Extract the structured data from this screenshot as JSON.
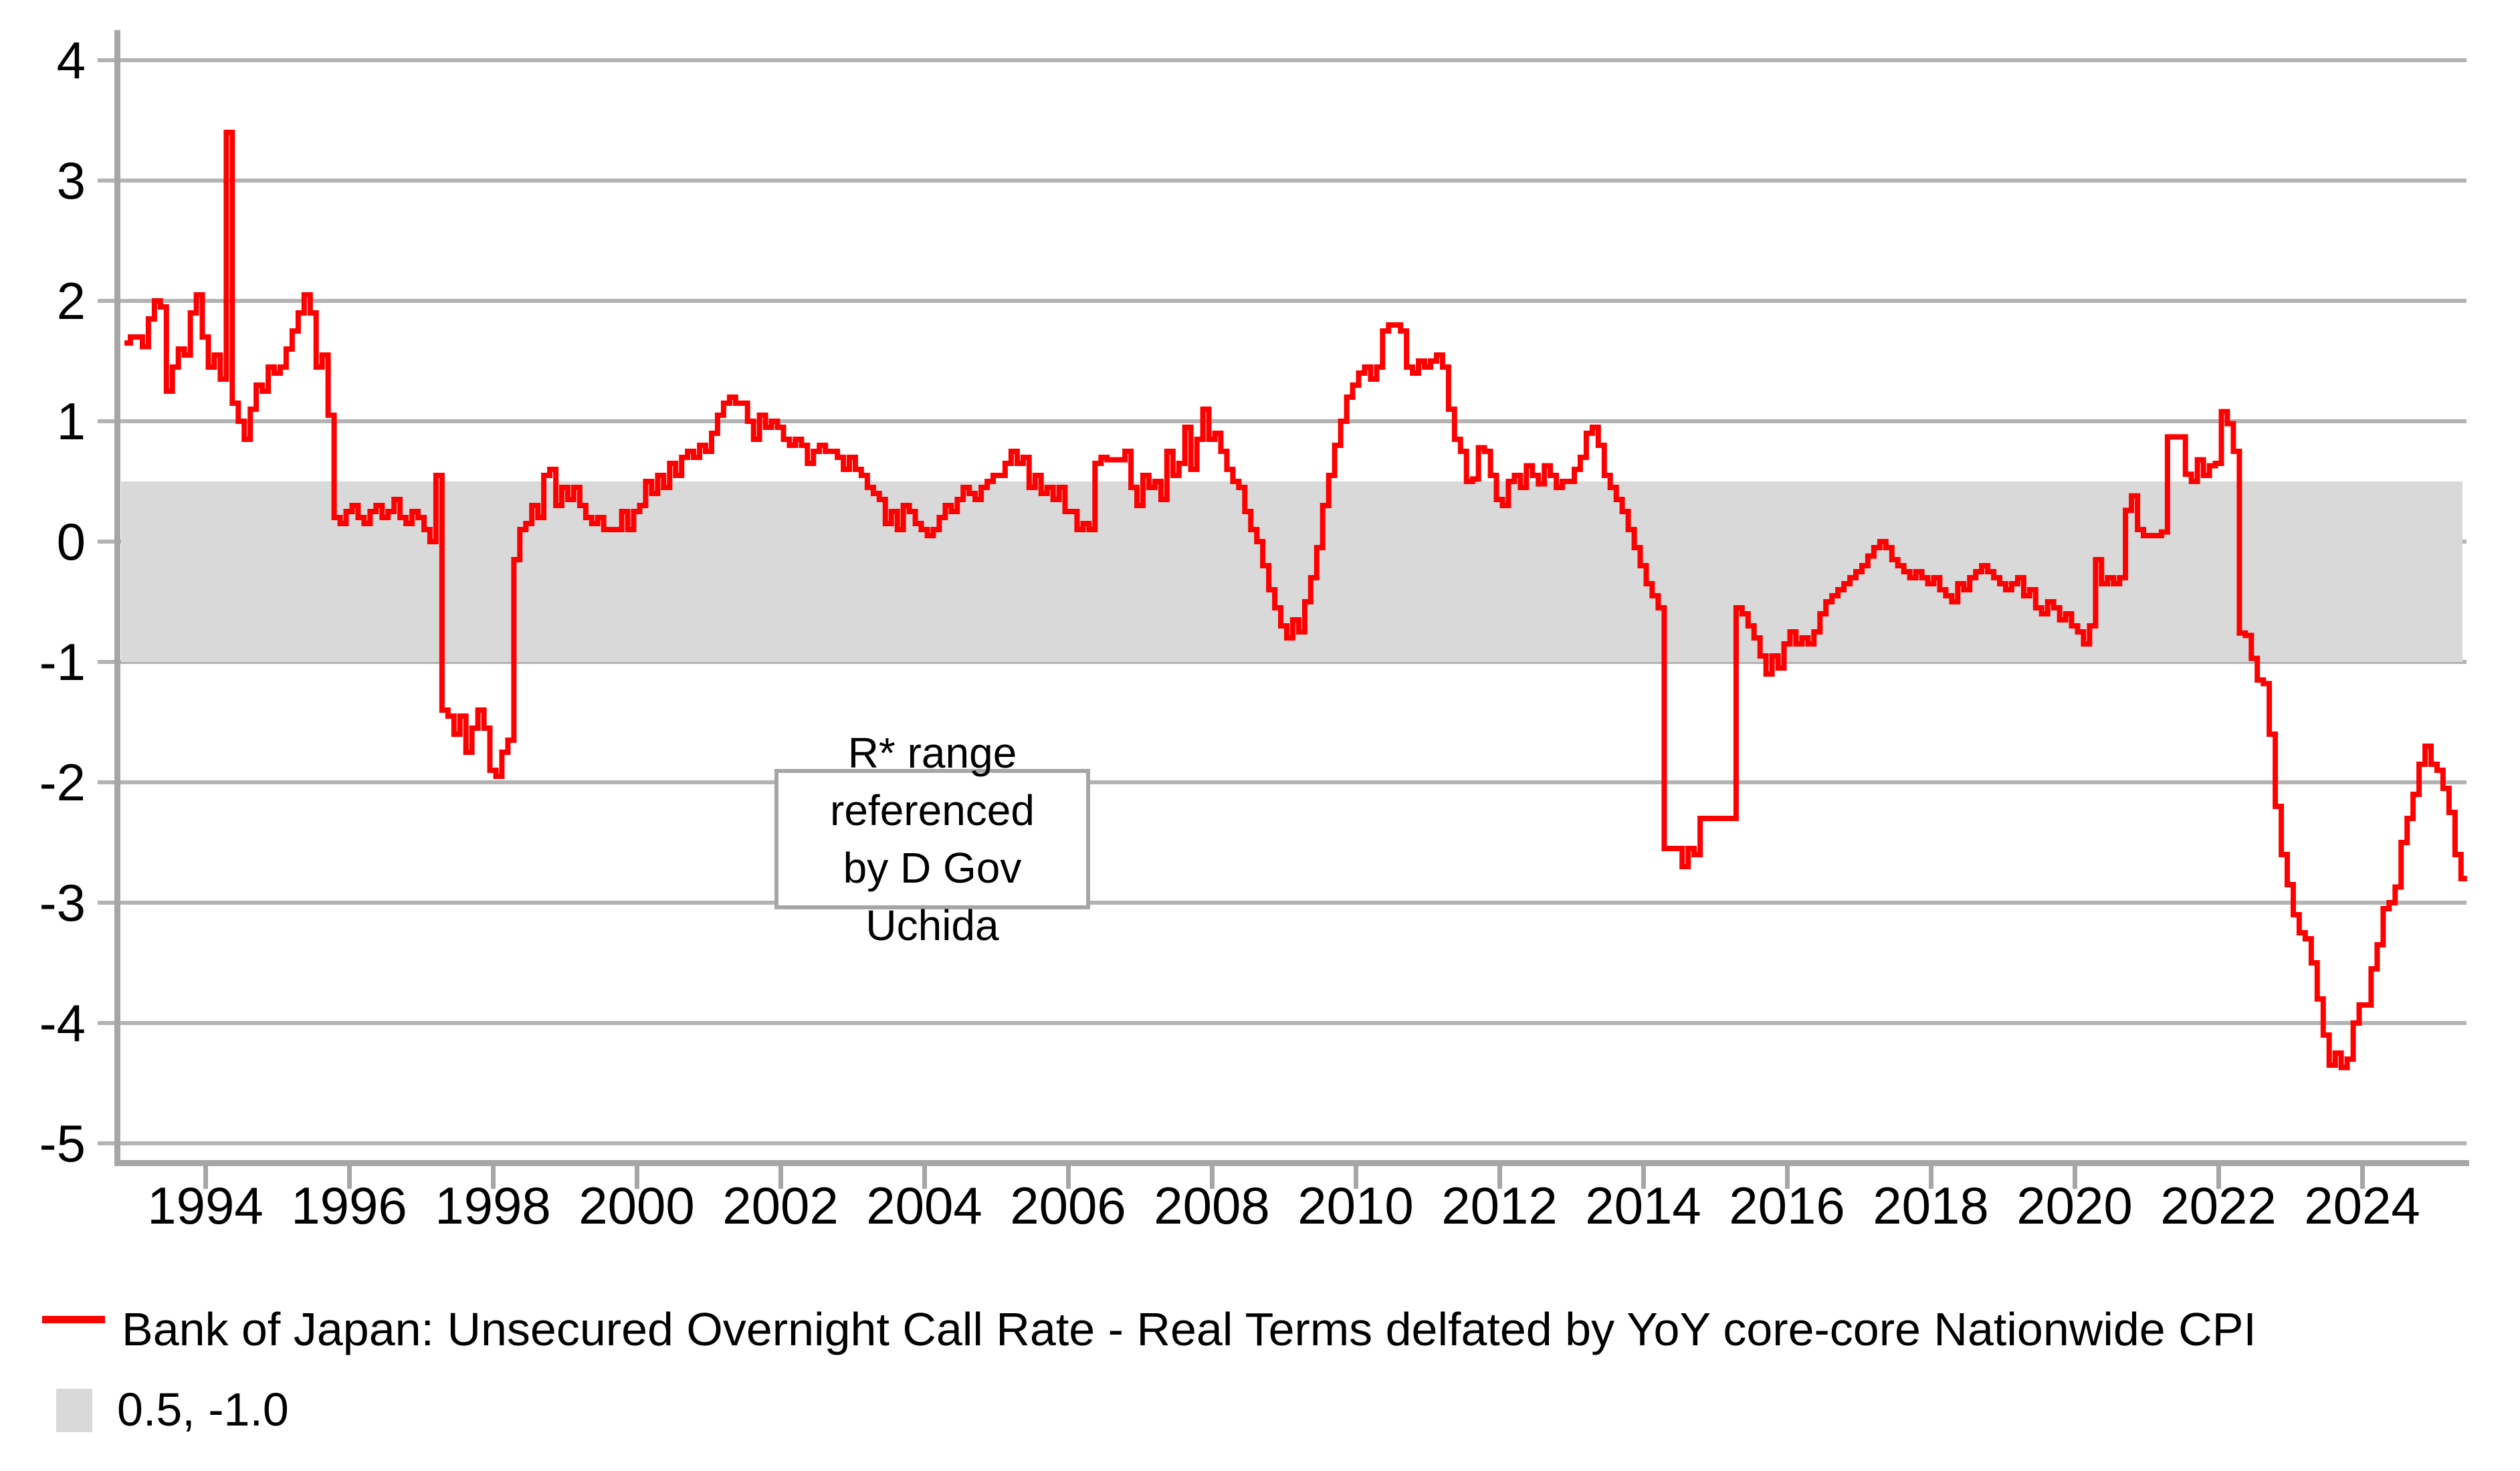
{
  "colors": {
    "line": "#ff0000",
    "band": "#d9d9d9",
    "grid": "#b3b3b3",
    "axis": "#a6a6a6",
    "text": "#000000"
  },
  "legend": {
    "series_label": "Bank of Japan: Unsecured Overnight Call Rate - Real Terms delfated by YoY core-core Nationwide CPI",
    "band_label": "0.5, -1.0"
  },
  "annotation": {
    "line1": "R* range referenced",
    "line2": "by D Gov Uchida"
  },
  "chart_data": {
    "type": "line",
    "title": "",
    "xlabel": "",
    "ylabel": "",
    "grid": "horizontal",
    "legend_position": "bottom-left",
    "ylim": [
      -5,
      4.4
    ],
    "x_range_years": [
      1992.875,
      2025.375
    ],
    "y_tick_labels": [
      4,
      3,
      2,
      1,
      0,
      -1,
      -2,
      -3,
      -4,
      -5
    ],
    "x_tick_labels": [
      1994,
      1996,
      1998,
      2000,
      2002,
      2004,
      2006,
      2008,
      2010,
      2012,
      2014,
      2016,
      2018,
      2020,
      2022,
      2024
    ],
    "band": {
      "upper": 0.5,
      "lower": -1.0,
      "label": "0.5, -1.0"
    },
    "annotation_text": "R* range referenced by D Gov Uchida",
    "series": [
      {
        "name": "Bank of Japan: Unsecured Overnight Call Rate - Real Terms delfated by YoY core-core Nationwide CPI",
        "start": "1992-11",
        "frequency": "monthly",
        "values": [
          1.65,
          1.7,
          1.7,
          1.62,
          1.85,
          2.0,
          1.95,
          1.25,
          1.45,
          1.6,
          1.55,
          1.9,
          2.05,
          1.7,
          1.45,
          1.55,
          1.35,
          3.4,
          1.15,
          1.0,
          0.85,
          1.1,
          1.3,
          1.25,
          1.45,
          1.4,
          1.45,
          1.6,
          1.75,
          1.9,
          2.05,
          1.9,
          1.45,
          1.55,
          1.05,
          0.2,
          0.15,
          0.25,
          0.3,
          0.2,
          0.15,
          0.25,
          0.3,
          0.2,
          0.25,
          0.35,
          0.2,
          0.15,
          0.25,
          0.2,
          0.1,
          0.0,
          0.55,
          -1.4,
          -1.45,
          -1.6,
          -1.45,
          -1.75,
          -1.55,
          -1.4,
          -1.55,
          -1.9,
          -1.95,
          -1.75,
          -1.65,
          -0.15,
          0.1,
          0.15,
          0.3,
          0.2,
          0.55,
          0.6,
          0.3,
          0.45,
          0.35,
          0.45,
          0.3,
          0.2,
          0.15,
          0.2,
          0.1,
          0.1,
          0.1,
          0.25,
          0.1,
          0.25,
          0.3,
          0.5,
          0.4,
          0.55,
          0.45,
          0.65,
          0.55,
          0.7,
          0.75,
          0.7,
          0.8,
          0.75,
          0.9,
          1.05,
          1.15,
          1.2,
          1.15,
          1.15,
          1.0,
          0.85,
          1.05,
          0.95,
          1.0,
          0.95,
          0.85,
          0.8,
          0.85,
          0.8,
          0.65,
          0.75,
          0.8,
          0.75,
          0.75,
          0.7,
          0.6,
          0.7,
          0.6,
          0.55,
          0.45,
          0.4,
          0.35,
          0.15,
          0.25,
          0.1,
          0.3,
          0.25,
          0.15,
          0.1,
          0.05,
          0.1,
          0.2,
          0.3,
          0.25,
          0.35,
          0.45,
          0.4,
          0.35,
          0.45,
          0.5,
          0.55,
          0.55,
          0.65,
          0.75,
          0.65,
          0.7,
          0.45,
          0.55,
          0.4,
          0.45,
          0.35,
          0.45,
          0.25,
          0.25,
          0.1,
          0.15,
          0.1,
          0.65,
          0.7,
          0.68,
          0.68,
          0.68,
          0.75,
          0.45,
          0.3,
          0.55,
          0.45,
          0.5,
          0.35,
          0.75,
          0.55,
          0.65,
          0.95,
          0.6,
          0.85,
          1.1,
          0.85,
          0.9,
          0.75,
          0.6,
          0.5,
          0.45,
          0.25,
          0.1,
          0.0,
          -0.2,
          -0.4,
          -0.55,
          -0.7,
          -0.8,
          -0.65,
          -0.75,
          -0.5,
          -0.3,
          -0.05,
          0.3,
          0.55,
          0.8,
          1.0,
          1.2,
          1.3,
          1.4,
          1.45,
          1.35,
          1.45,
          1.75,
          1.8,
          1.8,
          1.75,
          1.45,
          1.4,
          1.5,
          1.45,
          1.5,
          1.55,
          1.45,
          1.1,
          0.85,
          0.75,
          0.5,
          0.52,
          0.78,
          0.75,
          0.55,
          0.35,
          0.3,
          0.5,
          0.55,
          0.45,
          0.63,
          0.55,
          0.48,
          0.63,
          0.55,
          0.45,
          0.5,
          0.5,
          0.6,
          0.7,
          0.9,
          0.95,
          0.8,
          0.55,
          0.45,
          0.35,
          0.25,
          0.1,
          -0.05,
          -0.2,
          -0.35,
          -0.45,
          -0.55,
          -2.55,
          -2.55,
          -2.55,
          -2.7,
          -2.55,
          -2.6,
          -2.3,
          -2.3,
          -2.3,
          -2.3,
          -2.3,
          -2.3,
          -0.55,
          -0.6,
          -0.7,
          -0.8,
          -0.95,
          -1.1,
          -0.95,
          -1.05,
          -0.85,
          -0.75,
          -0.85,
          -0.8,
          -0.85,
          -0.75,
          -0.6,
          -0.5,
          -0.45,
          -0.4,
          -0.35,
          -0.3,
          -0.25,
          -0.2,
          -0.12,
          -0.05,
          0.0,
          -0.05,
          -0.15,
          -0.2,
          -0.25,
          -0.3,
          -0.25,
          -0.3,
          -0.35,
          -0.3,
          -0.4,
          -0.45,
          -0.5,
          -0.35,
          -0.4,
          -0.3,
          -0.25,
          -0.2,
          -0.25,
          -0.3,
          -0.35,
          -0.4,
          -0.35,
          -0.3,
          -0.45,
          -0.4,
          -0.55,
          -0.6,
          -0.5,
          -0.55,
          -0.65,
          -0.6,
          -0.7,
          -0.75,
          -0.85,
          -0.7,
          -0.15,
          -0.35,
          -0.3,
          -0.35,
          -0.3,
          0.26,
          0.38,
          0.1,
          0.05,
          0.05,
          0.05,
          0.08,
          0.87,
          0.87,
          0.87,
          0.56,
          0.5,
          0.68,
          0.55,
          0.63,
          0.65,
          1.08,
          0.98,
          0.75,
          -0.76,
          -0.78,
          -0.97,
          -1.15,
          -1.18,
          -1.6,
          -2.2,
          -2.6,
          -2.85,
          -3.1,
          -3.25,
          -3.3,
          -3.5,
          -3.8,
          -4.1,
          -4.35,
          -4.25,
          -4.37,
          -4.3,
          -4.0,
          -3.85,
          -3.85,
          -3.55,
          -3.35,
          -3.05,
          -3.0,
          -2.87,
          -2.5,
          -2.3,
          -2.1,
          -1.85,
          -1.7,
          -1.85,
          -1.9,
          -2.05,
          -2.25,
          -2.6,
          -2.8
        ]
      }
    ]
  }
}
